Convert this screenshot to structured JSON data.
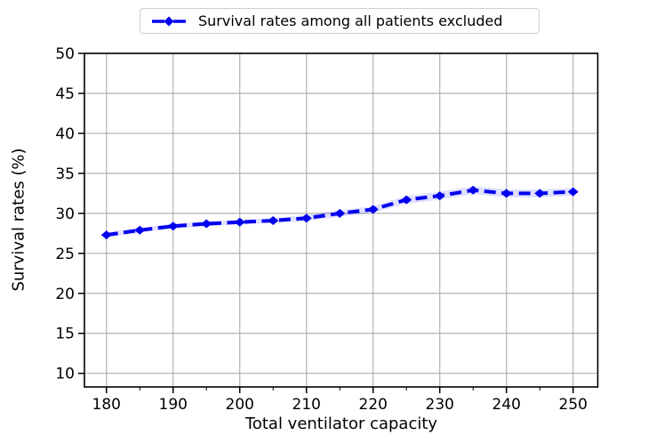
{
  "figure": {
    "background": "#ffffff"
  },
  "chart_data": {
    "type": "line",
    "title": "",
    "xlabel": "Total ventilator capacity",
    "ylabel": "Survival rates (%)",
    "legend": {
      "label": "Survival rates among all patients excluded",
      "position": "top center, above axes",
      "marker_sample": "blue dashed line with diamond marker"
    },
    "x": [
      180,
      185,
      190,
      195,
      200,
      205,
      210,
      215,
      220,
      225,
      230,
      235,
      240,
      245,
      250
    ],
    "series": [
      {
        "name": "Survival rates among all patients excluded",
        "values": [
          27.3,
          27.9,
          28.4,
          28.7,
          28.9,
          29.1,
          29.4,
          30.0,
          30.5,
          31.7,
          32.2,
          32.9,
          32.5,
          32.5,
          32.7
        ],
        "band_lower": [
          27.0,
          27.6,
          28.1,
          28.4,
          28.6,
          28.8,
          29.0,
          29.6,
          30.1,
          31.2,
          31.7,
          32.4,
          32.0,
          32.0,
          32.2
        ],
        "band_upper": [
          27.6,
          28.2,
          28.7,
          29.0,
          29.2,
          29.4,
          29.8,
          30.4,
          30.9,
          32.2,
          32.7,
          33.4,
          33.0,
          33.0,
          33.2
        ]
      }
    ],
    "xlim": [
      176.7,
      253.7
    ],
    "ylim": [
      8.3,
      50
    ],
    "xticks": [
      180,
      190,
      200,
      210,
      220,
      230,
      240,
      250
    ],
    "xminorticks": [
      185,
      195,
      205,
      215,
      225,
      235,
      245
    ],
    "yticks": [
      10,
      15,
      20,
      25,
      30,
      35,
      40,
      45,
      50
    ],
    "grid": true,
    "line_style": "dashed",
    "marker": "diamond",
    "colors": {
      "line": "#0000ee",
      "band": "rgba(0,0,255,0.12)",
      "grid": "#b0b0b0",
      "axis": "#000000",
      "legend_border": "#cfcfcf"
    }
  }
}
